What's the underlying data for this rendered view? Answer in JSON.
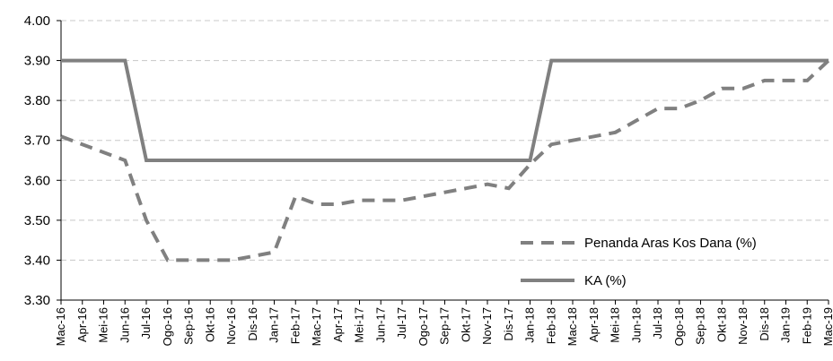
{
  "chart_data": {
    "type": "line",
    "title": "",
    "xlabel": "",
    "ylabel": "",
    "ylim": [
      3.3,
      4.0
    ],
    "yticks": [
      "3.30",
      "3.40",
      "3.50",
      "3.60",
      "3.70",
      "3.80",
      "3.90",
      "4.00"
    ],
    "grid": "horizontal dashed",
    "legend_position": "bottom-right",
    "x": [
      "Mac-16",
      "Apr-16",
      "Mei-16",
      "Jun-16",
      "Jul-16",
      "Ogo-16",
      "Sep-16",
      "Okt-16",
      "Nov-16",
      "Dis-16",
      "Jan-17",
      "Feb-17",
      "Mac-17",
      "Apr-17",
      "Mei-17",
      "Jun-17",
      "Jul-17",
      "Ogo-17",
      "Sep-17",
      "Okt-17",
      "Nov-17",
      "Dis-17",
      "Jan-18",
      "Feb-18",
      "Mac-18",
      "Apr-18",
      "Mei-18",
      "Jun-18",
      "Jul-18",
      "Ogo-18",
      "Sep-18",
      "Okt-18",
      "Nov-18",
      "Dis-18",
      "Jan-19",
      "Feb-19",
      "Mac-19"
    ],
    "series": [
      {
        "name": "Penanda Aras Kos Dana (%)",
        "style": "dashed",
        "color": "#808080",
        "values": [
          3.71,
          3.69,
          3.67,
          3.65,
          3.5,
          3.4,
          3.4,
          3.4,
          3.4,
          3.41,
          3.42,
          3.56,
          3.54,
          3.54,
          3.55,
          3.55,
          3.55,
          3.56,
          3.57,
          3.58,
          3.59,
          3.58,
          3.64,
          3.69,
          3.7,
          3.71,
          3.72,
          3.75,
          3.78,
          3.78,
          3.8,
          3.83,
          3.83,
          3.85,
          3.85,
          3.85,
          3.9
        ]
      },
      {
        "name": "KA (%)",
        "style": "solid",
        "color": "#808080",
        "values": [
          3.9,
          3.9,
          3.9,
          3.9,
          3.65,
          3.65,
          3.65,
          3.65,
          3.65,
          3.65,
          3.65,
          3.65,
          3.65,
          3.65,
          3.65,
          3.65,
          3.65,
          3.65,
          3.65,
          3.65,
          3.65,
          3.65,
          3.65,
          3.9,
          3.9,
          3.9,
          3.9,
          3.9,
          3.9,
          3.9,
          3.9,
          3.9,
          3.9,
          3.9,
          3.9,
          3.9,
          3.9
        ]
      }
    ]
  }
}
